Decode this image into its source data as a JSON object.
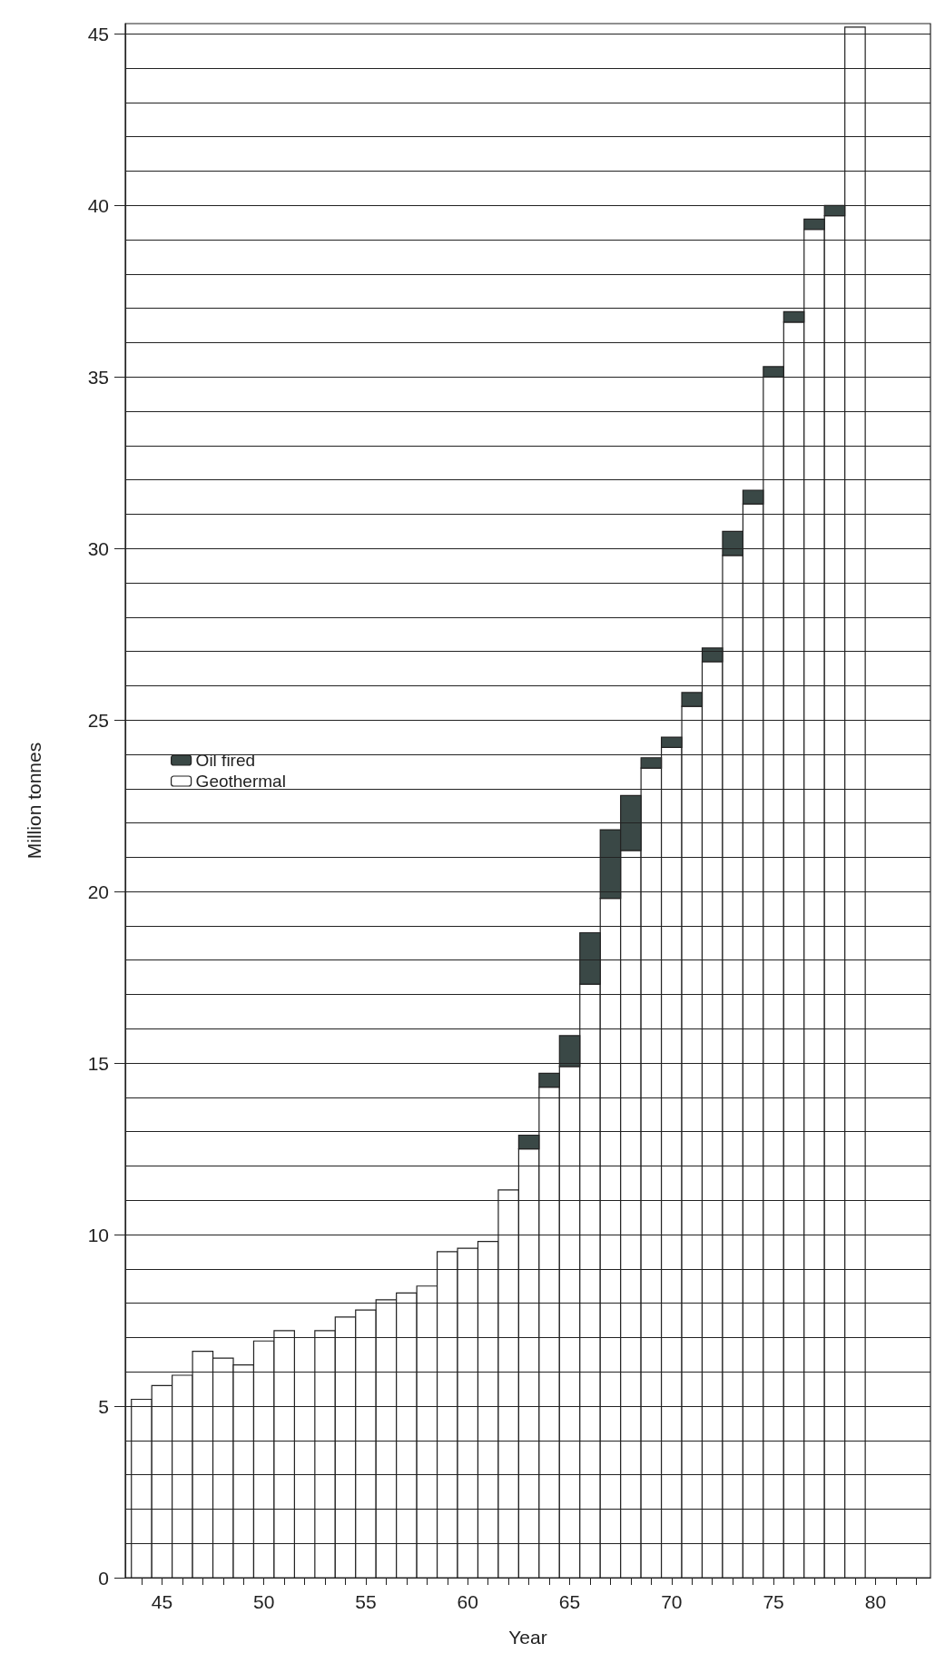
{
  "chart_data": {
    "type": "bar",
    "stacked": true,
    "xlabel": "Year",
    "ylabel": "Million tonnes",
    "x": [
      44,
      45,
      46,
      47,
      48,
      49,
      50,
      51,
      52,
      53,
      54,
      55,
      56,
      57,
      58,
      59,
      60,
      61,
      62,
      63,
      64,
      65,
      66,
      67,
      68,
      69,
      70,
      71,
      72,
      73,
      74,
      75,
      76,
      77,
      78,
      79
    ],
    "series": [
      {
        "name": "Geothermal",
        "color": "#ffffff",
        "values": [
          5.2,
          5.6,
          5.9,
          6.6,
          6.4,
          6.2,
          6.9,
          7.2,
          null,
          7.2,
          7.6,
          7.8,
          8.1,
          8.3,
          8.5,
          9.5,
          9.6,
          9.8,
          11.3,
          12.5,
          14.3,
          14.9,
          17.3,
          19.8,
          21.2,
          23.6,
          24.2,
          25.4,
          26.7,
          29.8,
          31.3,
          35.0,
          36.6,
          39.3,
          39.7,
          45.2
        ]
      },
      {
        "name": "Oil fired",
        "color": "#3a4846",
        "values": [
          null,
          null,
          null,
          null,
          null,
          null,
          null,
          null,
          null,
          null,
          null,
          null,
          null,
          null,
          null,
          null,
          null,
          null,
          null,
          0.4,
          0.4,
          0.9,
          1.5,
          2.0,
          1.6,
          0.3,
          0.3,
          0.4,
          0.4,
          0.7,
          0.4,
          0.3,
          0.3,
          0.3,
          0.3,
          null
        ]
      }
    ],
    "xlim": [
      43.2,
      82.7
    ],
    "xticks": [
      {
        "value": 44,
        "label": null
      },
      45,
      {
        "value": 46,
        "label": null
      },
      {
        "value": 47,
        "label": null
      },
      {
        "value": 48,
        "label": null
      },
      {
        "value": 49,
        "label": null
      },
      50,
      {
        "value": 51,
        "label": null
      },
      {
        "value": 52,
        "label": null
      },
      {
        "value": 53,
        "label": null
      },
      {
        "value": 54,
        "label": null
      },
      55,
      {
        "value": 56,
        "label": null
      },
      {
        "value": 57,
        "label": null
      },
      {
        "value": 58,
        "label": null
      },
      {
        "value": 59,
        "label": null
      },
      60,
      {
        "value": 61,
        "label": null
      },
      {
        "value": 62,
        "label": null
      },
      {
        "value": 63,
        "label": null
      },
      {
        "value": 64,
        "label": null
      },
      65,
      {
        "value": 66,
        "label": null
      },
      {
        "value": 67,
        "label": null
      },
      {
        "value": 68,
        "label": null
      },
      {
        "value": 69,
        "label": null
      },
      70,
      {
        "value": 71,
        "label": null
      },
      {
        "value": 72,
        "label": null
      },
      {
        "value": 73,
        "label": null
      },
      {
        "value": 74,
        "label": null
      },
      75,
      {
        "value": 76,
        "label": null
      },
      {
        "value": 77,
        "label": null
      },
      {
        "value": 78,
        "label": null
      },
      {
        "value": 79,
        "label": null
      },
      80,
      {
        "value": 81,
        "label": null
      },
      {
        "value": 82,
        "label": null
      }
    ],
    "ylim": [
      0,
      45.3
    ],
    "yticks": [
      0,
      {
        "value": 1,
        "label": null
      },
      {
        "value": 2,
        "label": null
      },
      {
        "value": 3,
        "label": null
      },
      {
        "value": 4,
        "label": null
      },
      5,
      {
        "value": 6,
        "label": null
      },
      {
        "value": 7,
        "label": null
      },
      {
        "value": 8,
        "label": null
      },
      {
        "value": 9,
        "label": null
      },
      10,
      {
        "value": 11,
        "label": null
      },
      {
        "value": 12,
        "label": null
      },
      {
        "value": 13,
        "label": null
      },
      {
        "value": 14,
        "label": null
      },
      15,
      {
        "value": 16,
        "label": null
      },
      {
        "value": 17,
        "label": null
      },
      {
        "value": 18,
        "label": null
      },
      {
        "value": 19,
        "label": null
      },
      20,
      {
        "value": 21,
        "label": null
      },
      {
        "value": 22,
        "label": null
      },
      {
        "value": 23,
        "label": null
      },
      {
        "value": 24,
        "label": null
      },
      25,
      {
        "value": 26,
        "label": null
      },
      {
        "value": 27,
        "label": null
      },
      {
        "value": 28,
        "label": null
      },
      {
        "value": 29,
        "label": null
      },
      30,
      {
        "value": 31,
        "label": null
      },
      {
        "value": 32,
        "label": null
      },
      {
        "value": 33,
        "label": null
      },
      {
        "value": 34,
        "label": null
      },
      35,
      {
        "value": 36,
        "label": null
      },
      {
        "value": 37,
        "label": null
      },
      {
        "value": 38,
        "label": null
      },
      {
        "value": 39,
        "label": null
      },
      40,
      {
        "value": 41,
        "label": null
      },
      {
        "value": 42,
        "label": null
      },
      {
        "value": 43,
        "label": null
      },
      {
        "value": 44,
        "label": null
      },
      45
    ],
    "grid": "y",
    "legend": "left"
  }
}
